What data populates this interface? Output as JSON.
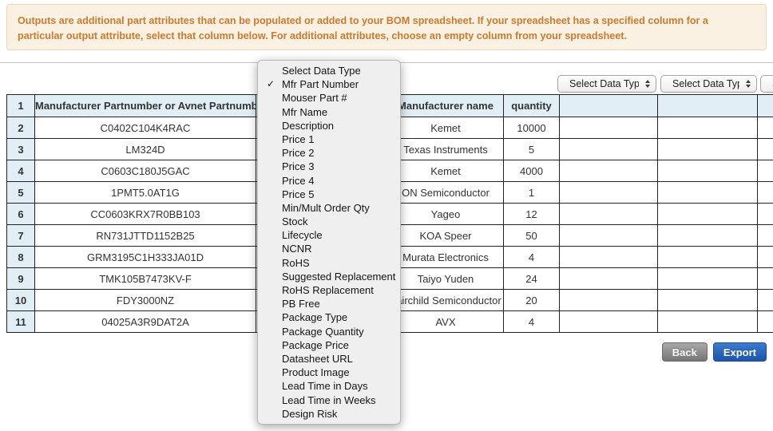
{
  "banner": {
    "text": "Outputs are additional part attributes that can be populated or added to your BOM spreadsheet. If your spreadsheet has a specified column for a particular output attribute, select that column below. For additional attributes, choose an empty column from your spreadsheet."
  },
  "column_selects": {
    "placeholder": "Select Data Type"
  },
  "dropdown": {
    "checked_item": "Mfr Part Number",
    "items": [
      "Select Data Type",
      "Mfr Part Number",
      "Mouser Part #",
      "Mfr Name",
      "Description",
      "Price 1",
      "Price 2",
      "Price 3",
      "Price 4",
      "Price 5",
      "Min/Mult Order Qty",
      "Stock",
      "Lifecycle",
      "NCNR",
      "RoHS",
      "Suggested Replacement",
      "RoHS Replacement",
      "PB Free",
      "Package Type",
      "Package Quantity",
      "Package Price",
      "Datasheet URL",
      "Product Image",
      "Lead Time in Days",
      "Lead Time in Weeks",
      "Design Risk"
    ]
  },
  "table": {
    "header": {
      "row_num": "1",
      "part_number": "Manufacturer Partnumber or Avnet Partnumber",
      "manufacturer": "Manufacturer name",
      "quantity": "quantity"
    },
    "rows": [
      {
        "num": "2",
        "part": "C0402C104K4RAC",
        "mfr": "Kemet",
        "qty": "10000"
      },
      {
        "num": "3",
        "part": "LM324D",
        "mfr": "Texas Instruments",
        "qty": "5"
      },
      {
        "num": "4",
        "part": "C0603C180J5GAC",
        "mfr": "Kemet",
        "qty": "4000"
      },
      {
        "num": "5",
        "part": "1PMT5.0AT1G",
        "mfr": "ON Semiconductor",
        "qty": "1"
      },
      {
        "num": "6",
        "part": "CC0603KRX7R0BB103",
        "mfr": "Yageo",
        "qty": "12"
      },
      {
        "num": "7",
        "part": "RN731JTTD1152B25",
        "mfr": "KOA Speer",
        "qty": "50"
      },
      {
        "num": "8",
        "part": "GRM3195C1H333JA01D",
        "mfr": "Murata Electronics",
        "qty": "4"
      },
      {
        "num": "9",
        "part": "TMK105B7473KV-F",
        "mfr": "Taiyo Yuden",
        "qty": "24"
      },
      {
        "num": "10",
        "part": "FDY3000NZ",
        "mfr": "Fairchild Semiconductor",
        "qty": "20"
      },
      {
        "num": "11",
        "part": "04025A3R9DAT2A",
        "mfr": "AVX",
        "qty": "4"
      }
    ]
  },
  "buttons": {
    "back": "Back",
    "export": "Export"
  },
  "colors": {
    "banner_text": "#cc7a2e",
    "banner_bg": "#faf1e3",
    "header_row_bg": "#e2eef5",
    "export_blue": "#2a66c0",
    "back_gray": "#8a8a8a"
  }
}
